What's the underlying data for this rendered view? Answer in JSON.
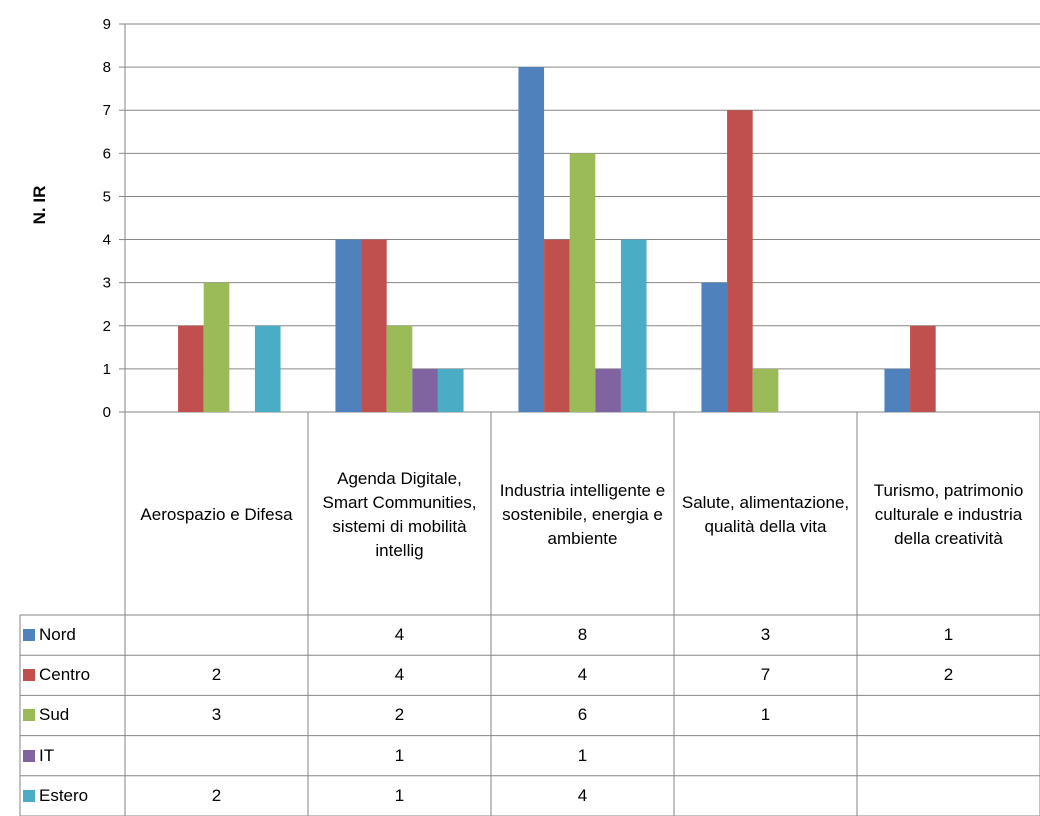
{
  "chart_data": {
    "type": "bar",
    "title": "",
    "xlabel": "",
    "ylabel": "N. IR",
    "ylim": [
      0,
      9
    ],
    "yticks": [
      0,
      1,
      2,
      3,
      4,
      5,
      6,
      7,
      8,
      9
    ],
    "grid": true,
    "legend": "data-table-left",
    "categories": [
      "Aerospazio e Difesa",
      "Agenda Digitale, Smart Communities, sistemi di mobilità intellig",
      "Industria intelligente e sostenibile, energia e ambiente",
      "Salute, alimentazione, qualità della vita",
      "Turismo, patrimonio culturale e industria della creatività"
    ],
    "series": [
      {
        "name": "Nord",
        "color": "#4F81BD",
        "values": [
          null,
          4,
          8,
          3,
          1
        ]
      },
      {
        "name": "Centro",
        "color": "#C0504D",
        "values": [
          2,
          4,
          4,
          7,
          2
        ]
      },
      {
        "name": "Sud",
        "color": "#9BBB59",
        "values": [
          3,
          2,
          6,
          1,
          null
        ]
      },
      {
        "name": "IT",
        "color": "#8064A2",
        "values": [
          null,
          1,
          1,
          null,
          null
        ]
      },
      {
        "name": "Estero",
        "color": "#4BACC6",
        "values": [
          2,
          1,
          4,
          null,
          null
        ]
      }
    ]
  }
}
